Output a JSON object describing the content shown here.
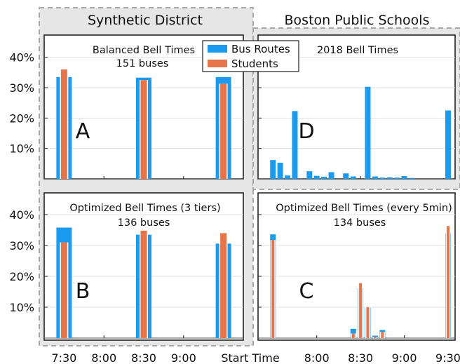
{
  "headers": {
    "left": "Synthetic District",
    "right": "Boston Public Schools"
  },
  "legend": {
    "items": [
      "Bus Routes",
      "Students"
    ],
    "colors": [
      "#1a9bf0",
      "#e8754a"
    ]
  },
  "colors": {
    "bus": "#1a9bf0",
    "students": "#e8754a",
    "highlight_box": "#a8a8a8",
    "shade": "#e6e6e6"
  },
  "y_ticks": [
    "40%",
    "30%",
    "20%",
    "10%"
  ],
  "x_left": {
    "ticks": [
      "7:30",
      "8:00",
      "8:30",
      "9:00"
    ]
  },
  "x_right": {
    "ticks": [
      "8:00",
      "8:30",
      "9:00",
      "9:30"
    ]
  },
  "x_label": "Start Time",
  "chart_data": [
    {
      "id": "A",
      "letter": "A",
      "type": "bar",
      "title": "Balanced Bell Times",
      "subtitle": "151 buses",
      "xlim": [
        7.25,
        9.75
      ],
      "ylim": [
        0,
        45
      ],
      "series": [
        {
          "name": "Bus Routes",
          "points": [
            [
              7.5,
              33.5
            ],
            [
              8.5,
              33.3
            ],
            [
              9.5,
              33.5
            ]
          ]
        },
        {
          "name": "Students",
          "points": [
            [
              7.5,
              36.0
            ],
            [
              8.5,
              32.5
            ],
            [
              9.5,
              31.3
            ]
          ]
        }
      ]
    },
    {
      "id": "B",
      "letter": "B",
      "type": "bar",
      "title": "Optimized Bell Times (3 tiers)",
      "subtitle": "136 buses",
      "xlim": [
        7.25,
        9.75
      ],
      "ylim": [
        0,
        45
      ],
      "series": [
        {
          "name": "Bus Routes",
          "points": [
            [
              7.5,
              35.8
            ],
            [
              8.5,
              33.5
            ],
            [
              9.5,
              30.6
            ]
          ]
        },
        {
          "name": "Students",
          "points": [
            [
              7.5,
              31.0
            ],
            [
              8.5,
              34.8
            ],
            [
              9.5,
              34.0
            ]
          ]
        }
      ]
    },
    {
      "id": "D",
      "letter": "D",
      "type": "bar",
      "title": "2018 Bell Times",
      "subtitle": "",
      "xlim": [
        7.33,
        9.58
      ],
      "ylim": [
        0,
        45
      ],
      "series": [
        {
          "name": "Bus Routes",
          "points": [
            [
              7.5,
              6.2
            ],
            [
              7.583,
              5.3
            ],
            [
              7.667,
              1.1
            ],
            [
              7.75,
              22.3
            ],
            [
              7.917,
              2.5
            ],
            [
              8.0,
              1.0
            ],
            [
              8.083,
              0.7
            ],
            [
              8.167,
              2.2
            ],
            [
              8.333,
              1.8
            ],
            [
              8.417,
              0.8
            ],
            [
              8.583,
              30.3
            ],
            [
              8.667,
              0.8
            ],
            [
              8.75,
              0.4
            ],
            [
              8.833,
              0.5
            ],
            [
              8.917,
              0.4
            ],
            [
              9.0,
              0.9
            ],
            [
              9.083,
              0.3
            ],
            [
              9.5,
              22.5
            ]
          ]
        }
      ]
    },
    {
      "id": "C",
      "letter": "C",
      "type": "bar",
      "title": "Optimized Bell Times (every 5min)",
      "subtitle": "134 buses",
      "xlim": [
        7.33,
        9.58
      ],
      "ylim": [
        0,
        45
      ],
      "series": [
        {
          "name": "Bus Routes",
          "points": [
            [
              7.5,
              33.6
            ],
            [
              8.417,
              3.0
            ],
            [
              8.5,
              16.2
            ],
            [
              8.583,
              9.8
            ],
            [
              8.667,
              0.8
            ],
            [
              8.75,
              2.6
            ],
            [
              9.5,
              34.0
            ]
          ]
        },
        {
          "name": "Students",
          "points": [
            [
              7.5,
              31.8
            ],
            [
              8.417,
              1.5
            ],
            [
              8.5,
              17.8
            ],
            [
              8.583,
              10.0
            ],
            [
              8.667,
              0.4
            ],
            [
              8.75,
              2.0
            ],
            [
              9.5,
              36.3
            ]
          ]
        }
      ]
    }
  ]
}
